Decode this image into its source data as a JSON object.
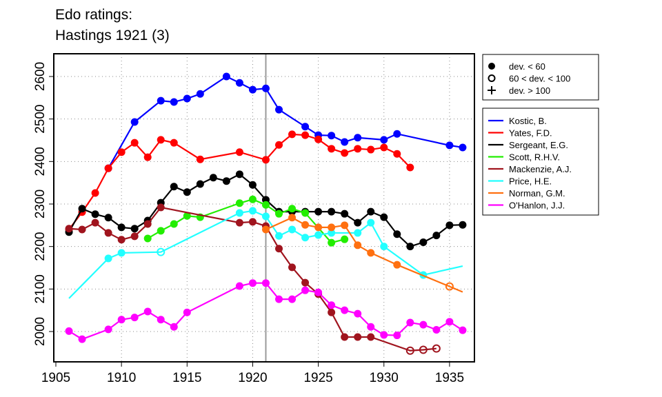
{
  "chart_data": {
    "type": "line",
    "title": [
      "Edo ratings:",
      "Hastings 1921 (3)"
    ],
    "xlim": [
      1905,
      1937
    ],
    "ylim": [
      1930,
      2680
    ],
    "xticks": [
      1905,
      1910,
      1915,
      1920,
      1925,
      1930,
      1935
    ],
    "yticks": [
      2000,
      2100,
      2200,
      2300,
      2400,
      2500,
      2600
    ],
    "grid": true,
    "marker_line_year": 1921,
    "marker_legend": [
      {
        "symbol": "filled",
        "label": "dev. < 60"
      },
      {
        "symbol": "open",
        "label": "60 < dev. < 100"
      },
      {
        "symbol": "plus",
        "label": "dev. > 100"
      }
    ],
    "legend_position": "right",
    "series": [
      {
        "name": "Kostic, B.",
        "color": "#0000ff",
        "points": [
          [
            1909,
            2384,
            "f"
          ],
          [
            1911,
            2493,
            "f"
          ],
          [
            1913,
            2543,
            "f"
          ],
          [
            1914,
            2540,
            "f"
          ],
          [
            1915,
            2548,
            "f"
          ],
          [
            1916,
            2559,
            "f"
          ],
          [
            1918,
            2600,
            "f"
          ],
          [
            1919,
            2585,
            "f"
          ],
          [
            1920,
            2569,
            "f"
          ],
          [
            1921,
            2572,
            "f"
          ],
          [
            1922,
            2522,
            "f"
          ],
          [
            1924,
            2482,
            "f"
          ],
          [
            1925,
            2462,
            "f"
          ],
          [
            1926,
            2461,
            "f"
          ],
          [
            1927,
            2446,
            "f"
          ],
          [
            1928,
            2456,
            "f"
          ],
          [
            1930,
            2451,
            "f"
          ],
          [
            1931,
            2465,
            "f"
          ],
          [
            1935,
            2438,
            "f"
          ],
          [
            1936,
            2433,
            "f"
          ]
        ]
      },
      {
        "name": "Yates, F.D.",
        "color": "#ff0000",
        "points": [
          [
            1906,
            2240,
            "f"
          ],
          [
            1907,
            2281,
            "f"
          ],
          [
            1908,
            2326,
            "f"
          ],
          [
            1909,
            2384,
            "f"
          ],
          [
            1910,
            2422,
            "f"
          ],
          [
            1911,
            2444,
            "f"
          ],
          [
            1912,
            2410,
            "f"
          ],
          [
            1913,
            2451,
            "f"
          ],
          [
            1914,
            2444,
            "f"
          ],
          [
            1916,
            2405,
            "f"
          ],
          [
            1919,
            2422,
            "f"
          ],
          [
            1921,
            2404,
            "f"
          ],
          [
            1922,
            2439,
            "f"
          ],
          [
            1923,
            2464,
            "f"
          ],
          [
            1924,
            2462,
            "f"
          ],
          [
            1925,
            2452,
            "f"
          ],
          [
            1926,
            2430,
            "f"
          ],
          [
            1927,
            2420,
            "f"
          ],
          [
            1928,
            2430,
            "f"
          ],
          [
            1929,
            2428,
            "f"
          ],
          [
            1930,
            2433,
            "f"
          ],
          [
            1931,
            2418,
            "f"
          ],
          [
            1932,
            2386,
            "f"
          ]
        ]
      },
      {
        "name": "Sergeant, E.G.",
        "color": "#000000",
        "points": [
          [
            1906,
            2234,
            "f"
          ],
          [
            1907,
            2289,
            "f"
          ],
          [
            1908,
            2276,
            "f"
          ],
          [
            1909,
            2268,
            "f"
          ],
          [
            1910,
            2245,
            "f"
          ],
          [
            1911,
            2242,
            "f"
          ],
          [
            1912,
            2261,
            "f"
          ],
          [
            1913,
            2303,
            "f"
          ],
          [
            1914,
            2341,
            "f"
          ],
          [
            1915,
            2328,
            "f"
          ],
          [
            1916,
            2347,
            "f"
          ],
          [
            1917,
            2362,
            "f"
          ],
          [
            1918,
            2354,
            "f"
          ],
          [
            1919,
            2370,
            "f"
          ],
          [
            1920,
            2345,
            "f"
          ],
          [
            1921,
            2310,
            "f"
          ],
          [
            1922,
            2282,
            "f"
          ],
          [
            1923,
            2282,
            "f"
          ],
          [
            1924,
            2282,
            "f"
          ],
          [
            1925,
            2282,
            "f"
          ],
          [
            1926,
            2282,
            "f"
          ],
          [
            1927,
            2277,
            "f"
          ],
          [
            1928,
            2256,
            "f"
          ],
          [
            1929,
            2282,
            "f"
          ],
          [
            1930,
            2269,
            "f"
          ],
          [
            1931,
            2229,
            "f"
          ],
          [
            1932,
            2200,
            "f"
          ],
          [
            1933,
            2210,
            "f"
          ],
          [
            1934,
            2226,
            "f"
          ],
          [
            1935,
            2250,
            "f"
          ],
          [
            1936,
            2251,
            "f"
          ]
        ]
      },
      {
        "name": "Scott, R.H.V.",
        "color": "#22ee00",
        "points": [
          [
            1912,
            2219,
            "f"
          ],
          [
            1913,
            2237,
            "f"
          ],
          [
            1914,
            2253,
            "f"
          ],
          [
            1915,
            2272,
            "f"
          ],
          [
            1916,
            2269,
            "f"
          ],
          [
            1919,
            2302,
            "f"
          ],
          [
            1920,
            2311,
            "f"
          ],
          [
            1921,
            2298,
            "f"
          ],
          [
            1922,
            2277,
            "f"
          ],
          [
            1923,
            2289,
            "f"
          ],
          [
            1924,
            2279,
            "f"
          ],
          [
            1926,
            2209,
            "f"
          ],
          [
            1927,
            2217,
            "f"
          ]
        ]
      },
      {
        "name": "Mackenzie, A.J.",
        "color": "#a0141e",
        "points": [
          [
            1906,
            2242,
            "f"
          ],
          [
            1907,
            2240,
            "f"
          ],
          [
            1908,
            2256,
            "f"
          ],
          [
            1909,
            2232,
            "f"
          ],
          [
            1910,
            2216,
            "f"
          ],
          [
            1911,
            2224,
            "f"
          ],
          [
            1912,
            2253,
            "f"
          ],
          [
            1913,
            2292,
            "f"
          ],
          [
            1919,
            2256,
            "f"
          ],
          [
            1920,
            2258,
            "f"
          ],
          [
            1921,
            2248,
            "f"
          ],
          [
            1922,
            2195,
            "f"
          ],
          [
            1923,
            2151,
            "f"
          ],
          [
            1924,
            2115,
            "f"
          ],
          [
            1925,
            2088,
            "f"
          ],
          [
            1926,
            2045,
            "f"
          ],
          [
            1927,
            1987,
            "f"
          ],
          [
            1928,
            1987,
            "f"
          ],
          [
            1929,
            1987,
            "f"
          ],
          [
            1932,
            1955,
            "o"
          ],
          [
            1933,
            1957,
            "o"
          ],
          [
            1934,
            1960,
            "o"
          ]
        ]
      },
      {
        "name": "Price, H.E.",
        "color": "#22ffff",
        "points": [
          [
            1906,
            2078,
            "n"
          ],
          [
            1909,
            2172,
            "f"
          ],
          [
            1910,
            2185,
            "f"
          ],
          [
            1913,
            2187,
            "o"
          ],
          [
            1919,
            2279,
            "f"
          ],
          [
            1920,
            2284,
            "f"
          ],
          [
            1921,
            2271,
            "f"
          ],
          [
            1922,
            2225,
            "f"
          ],
          [
            1923,
            2240,
            "f"
          ],
          [
            1924,
            2221,
            "f"
          ],
          [
            1925,
            2227,
            "f"
          ],
          [
            1926,
            2232,
            "f"
          ],
          [
            1928,
            2232,
            "f"
          ],
          [
            1929,
            2256,
            "f"
          ],
          [
            1930,
            2200,
            "f"
          ],
          [
            1933,
            2133,
            "f"
          ],
          [
            1936,
            2154,
            "n"
          ]
        ]
      },
      {
        "name": "Norman, G.M.",
        "color": "#ff7010",
        "points": [
          [
            1921,
            2240,
            "f"
          ],
          [
            1923,
            2268,
            "f"
          ],
          [
            1924,
            2251,
            "f"
          ],
          [
            1925,
            2245,
            "f"
          ],
          [
            1926,
            2245,
            "f"
          ],
          [
            1927,
            2250,
            "f"
          ],
          [
            1928,
            2203,
            "f"
          ],
          [
            1929,
            2185,
            "f"
          ],
          [
            1931,
            2157,
            "f"
          ],
          [
            1935,
            2106,
            "o"
          ],
          [
            1936,
            2093,
            "n"
          ]
        ]
      },
      {
        "name": "O'Hanlon, J.J.",
        "color": "#ff00ff",
        "points": [
          [
            1906,
            2001,
            "f"
          ],
          [
            1907,
            1982,
            "f"
          ],
          [
            1909,
            2005,
            "f"
          ],
          [
            1910,
            2028,
            "f"
          ],
          [
            1911,
            2033,
            "f"
          ],
          [
            1912,
            2047,
            "f"
          ],
          [
            1913,
            2028,
            "f"
          ],
          [
            1914,
            2011,
            "f"
          ],
          [
            1915,
            2045,
            "f"
          ],
          [
            1919,
            2107,
            "f"
          ],
          [
            1920,
            2114,
            "f"
          ],
          [
            1921,
            2114,
            "f"
          ],
          [
            1922,
            2076,
            "f"
          ],
          [
            1923,
            2076,
            "f"
          ],
          [
            1924,
            2097,
            "f"
          ],
          [
            1925,
            2092,
            "f"
          ],
          [
            1926,
            2062,
            "f"
          ],
          [
            1927,
            2050,
            "f"
          ],
          [
            1928,
            2042,
            "f"
          ],
          [
            1929,
            2011,
            "f"
          ],
          [
            1930,
            1992,
            "f"
          ],
          [
            1931,
            1991,
            "f"
          ],
          [
            1932,
            2021,
            "f"
          ],
          [
            1933,
            2016,
            "f"
          ],
          [
            1934,
            2004,
            "f"
          ],
          [
            1935,
            2023,
            "f"
          ],
          [
            1936,
            2003,
            "f"
          ]
        ]
      }
    ]
  }
}
